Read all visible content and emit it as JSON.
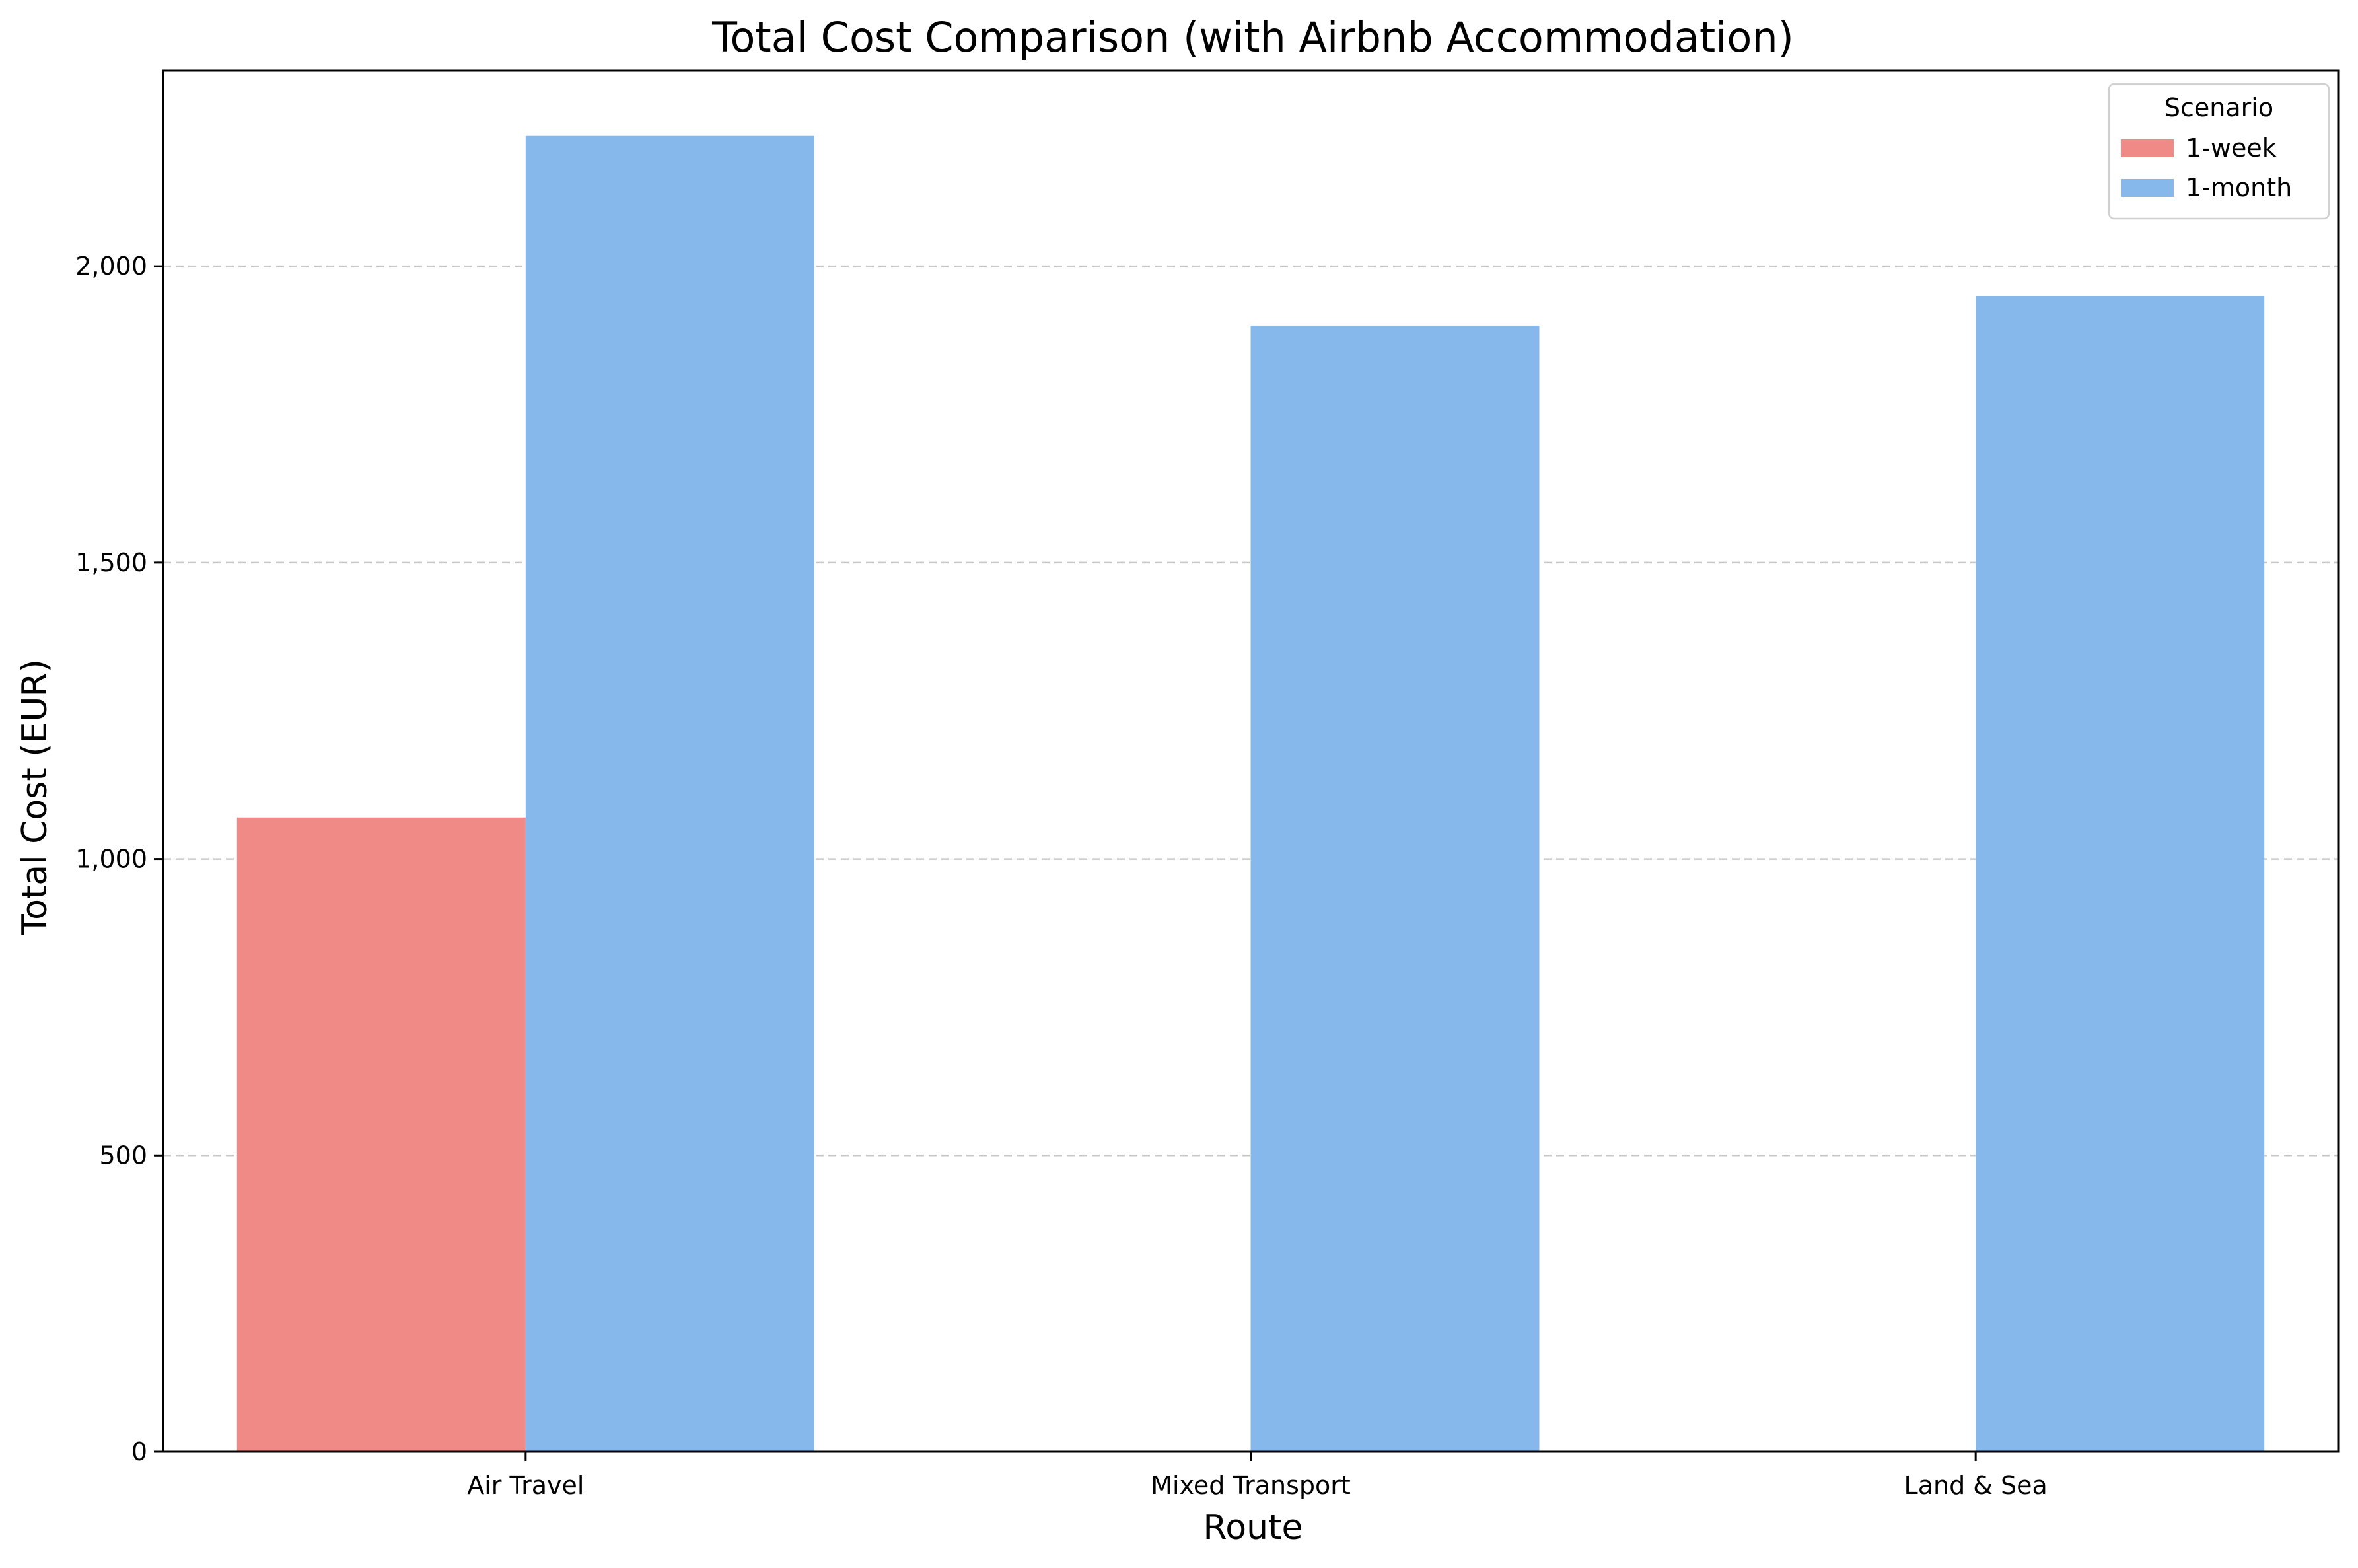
{
  "chart_data": {
    "type": "bar",
    "title": "Total Cost Comparison (with Airbnb Accommodation)",
    "xlabel": "Route",
    "ylabel": "Total Cost (EUR)",
    "categories": [
      "Air Travel",
      "Mixed Transport",
      "Land & Sea"
    ],
    "series": [
      {
        "name": "1-week",
        "values": [
          1070,
          0,
          0
        ],
        "color": "#f08a87"
      },
      {
        "name": "1-month",
        "values": [
          2220,
          1900,
          1950
        ],
        "color": "#86b8eb"
      }
    ],
    "ylim": [
      0,
      2330
    ],
    "yticks": [
      0,
      500,
      1000,
      1500,
      2000
    ],
    "ytick_labels": [
      "0",
      "500",
      "1,000",
      "1,500",
      "2,000"
    ],
    "grid": {
      "axis": "y",
      "style": "dashed",
      "color": "#c8c8c8"
    },
    "legend": {
      "title": "Scenario",
      "placement": "top-right"
    }
  }
}
